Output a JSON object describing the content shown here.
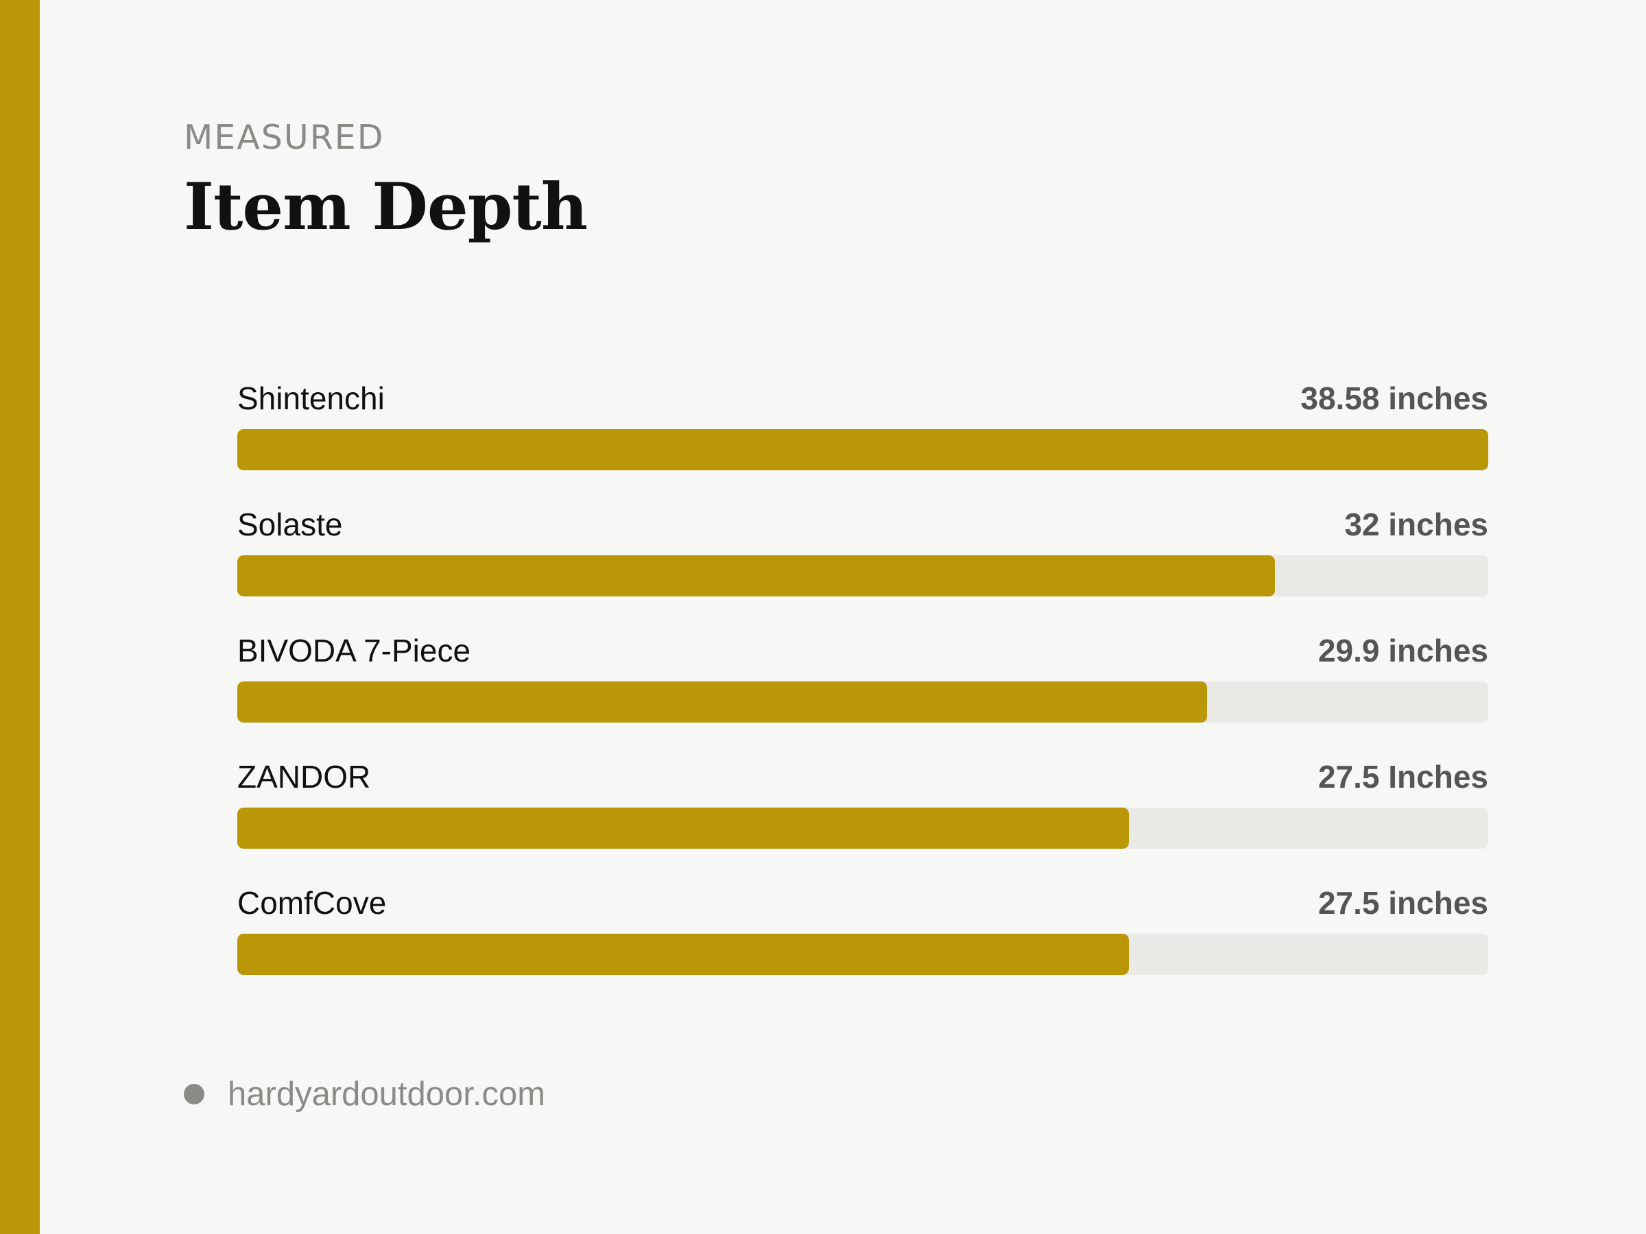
{
  "colors": {
    "accent": "#b99707",
    "track": "#e9e9e6",
    "background": "#f7f7f5"
  },
  "header": {
    "eyebrow": "MEASURED",
    "title": "Item Depth"
  },
  "chart_data": {
    "type": "bar",
    "orientation": "horizontal",
    "title": "Item Depth",
    "xlim": [
      0,
      38.58
    ],
    "grid": false,
    "categories": [
      "Shintenchi",
      "Solaste",
      "BIVODA 7-Piece",
      "ZANDOR",
      "ComfCove"
    ],
    "values": [
      38.58,
      32,
      29.9,
      27.5,
      27.5
    ],
    "value_labels": [
      "38.58 inches",
      "32 inches",
      "29.9 inches",
      "27.5 Inches",
      "27.5 inches"
    ]
  },
  "footer": {
    "source": "hardyardoutdoor.com"
  }
}
